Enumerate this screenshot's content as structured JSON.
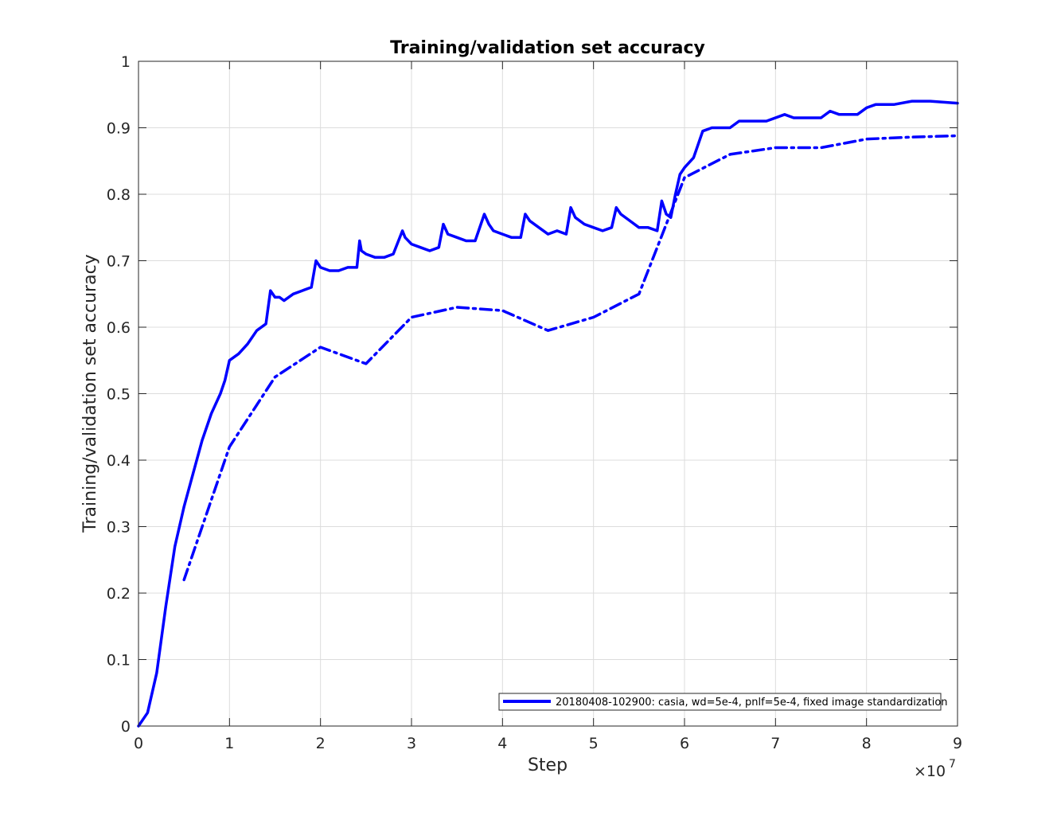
{
  "chart_data": {
    "type": "line",
    "title": "Training/validation set accuracy",
    "xlabel": "Step",
    "ylabel": "Training/validation set accuracy",
    "x_exponent_base": "×10",
    "x_exponent_power": "7",
    "xlim": [
      0,
      9
    ],
    "ylim": [
      0,
      1
    ],
    "x_ticks": [
      "0",
      "1",
      "2",
      "3",
      "4",
      "5",
      "6",
      "7",
      "8",
      "9"
    ],
    "y_ticks": [
      "0",
      "0.1",
      "0.2",
      "0.3",
      "0.4",
      "0.5",
      "0.6",
      "0.7",
      "0.8",
      "0.9",
      "1"
    ],
    "grid": true,
    "legend_position": "bottom-right",
    "legend_label": "20180408-102900: casia, wd=5e-4, pnlf=5e-4, fixed image standardization",
    "line_color": "#0000ff",
    "series": [
      {
        "style": "solid",
        "x": [
          0,
          0.1,
          0.2,
          0.3,
          0.4,
          0.5,
          0.6,
          0.7,
          0.8,
          0.9,
          0.95,
          1.0,
          1.1,
          1.2,
          1.3,
          1.4,
          1.45,
          1.5,
          1.55,
          1.6,
          1.7,
          1.8,
          1.9,
          1.95,
          2.0,
          2.1,
          2.2,
          2.3,
          2.4,
          2.43,
          2.45,
          2.5,
          2.6,
          2.7,
          2.8,
          2.9,
          2.93,
          3.0,
          3.1,
          3.2,
          3.3,
          3.35,
          3.4,
          3.5,
          3.6,
          3.7,
          3.8,
          3.85,
          3.9,
          4.0,
          4.1,
          4.2,
          4.25,
          4.3,
          4.4,
          4.5,
          4.6,
          4.7,
          4.75,
          4.8,
          4.9,
          5.0,
          5.1,
          5.2,
          5.25,
          5.3,
          5.4,
          5.5,
          5.6,
          5.7,
          5.75,
          5.8,
          5.85,
          5.9,
          5.95,
          6.0,
          6.1,
          6.2,
          6.3,
          6.5,
          6.6,
          6.7,
          6.9,
          7.1,
          7.2,
          7.4,
          7.5,
          7.6,
          7.7,
          7.9,
          8.0,
          8.1,
          8.2,
          8.3,
          8.5,
          8.7,
          9.0
        ],
        "y": [
          0.0,
          0.02,
          0.08,
          0.18,
          0.27,
          0.33,
          0.38,
          0.43,
          0.47,
          0.5,
          0.52,
          0.55,
          0.56,
          0.575,
          0.595,
          0.605,
          0.655,
          0.645,
          0.645,
          0.64,
          0.65,
          0.655,
          0.66,
          0.7,
          0.69,
          0.685,
          0.685,
          0.69,
          0.69,
          0.73,
          0.715,
          0.71,
          0.705,
          0.705,
          0.71,
          0.745,
          0.735,
          0.725,
          0.72,
          0.715,
          0.72,
          0.755,
          0.74,
          0.735,
          0.73,
          0.73,
          0.77,
          0.755,
          0.745,
          0.74,
          0.735,
          0.735,
          0.77,
          0.76,
          0.75,
          0.74,
          0.745,
          0.74,
          0.78,
          0.765,
          0.755,
          0.75,
          0.745,
          0.75,
          0.78,
          0.77,
          0.76,
          0.75,
          0.75,
          0.745,
          0.79,
          0.77,
          0.765,
          0.8,
          0.83,
          0.84,
          0.855,
          0.895,
          0.9,
          0.9,
          0.91,
          0.91,
          0.91,
          0.92,
          0.915,
          0.915,
          0.915,
          0.925,
          0.92,
          0.92,
          0.93,
          0.935,
          0.935,
          0.935,
          0.94,
          0.94,
          0.937
        ]
      },
      {
        "style": "dash-dot",
        "x": [
          0.5,
          1.0,
          1.5,
          2.0,
          2.5,
          3.0,
          3.5,
          4.0,
          4.5,
          5.0,
          5.5,
          6.0,
          6.5,
          7.0,
          7.5,
          8.0,
          8.5,
          9.0
        ],
        "y": [
          0.22,
          0.42,
          0.525,
          0.57,
          0.545,
          0.615,
          0.63,
          0.625,
          0.595,
          0.615,
          0.65,
          0.825,
          0.86,
          0.87,
          0.87,
          0.883,
          0.886,
          0.888
        ]
      }
    ]
  }
}
